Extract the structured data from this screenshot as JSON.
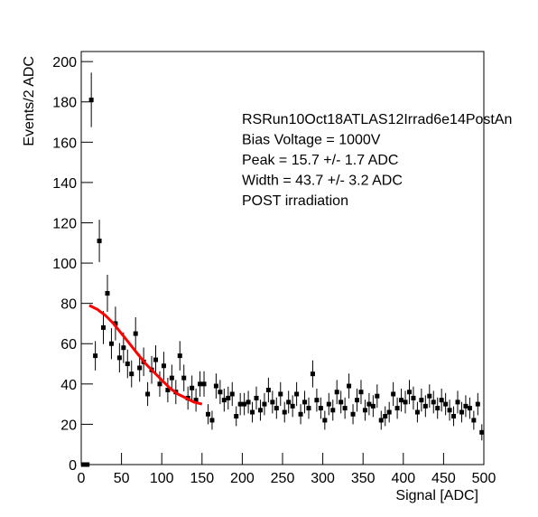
{
  "chart_data": {
    "type": "errorbar",
    "x_label": "Signal [ADC]",
    "y_label": "Events/2 ADC",
    "annotations": [
      "RSRun10Oct18ATLAS12Irrad6e14PostAn",
      "Bias Voltage = 1000V",
      "Peak = 15.7 +/- 1.7 ADC",
      "Width = 43.7 +/- 3.2 ADC",
      "POST irradiation"
    ],
    "xlim": [
      0,
      500
    ],
    "ylim": [
      0,
      205
    ],
    "xticks": [
      0,
      50,
      100,
      150,
      200,
      250,
      300,
      350,
      400,
      450,
      500
    ],
    "yticks": [
      0,
      20,
      40,
      60,
      80,
      100,
      120,
      140,
      160,
      180,
      200
    ],
    "series": [
      {
        "color": "#000000",
        "x": [
          2.5,
          7.5,
          12.5,
          17.5,
          22.5,
          27.5,
          32.5,
          37.5,
          42.5,
          47.5,
          52.5,
          57.5,
          62.5,
          67.5,
          72.5,
          77.5,
          82.5,
          87.5,
          92.5,
          97.5,
          102.5,
          107.5,
          112.5,
          117.5,
          122.5,
          127.5,
          132.5,
          137.5,
          142.5,
          147.5,
          152.5,
          157.5,
          162.5,
          167.5,
          172.5,
          177.5,
          182.5,
          187.5,
          192.5,
          197.5,
          202.5,
          207.5,
          212.5,
          217.5,
          222.5,
          227.5,
          232.5,
          237.5,
          242.5,
          247.5,
          252.5,
          257.5,
          262.5,
          267.5,
          272.5,
          277.5,
          282.5,
          287.5,
          292.5,
          297.5,
          302.5,
          307.5,
          312.5,
          317.5,
          322.5,
          327.5,
          332.5,
          337.5,
          342.5,
          347.5,
          352.5,
          357.5,
          362.5,
          367.5,
          372.5,
          377.5,
          382.5,
          387.5,
          392.5,
          397.5,
          402.5,
          407.5,
          412.5,
          417.5,
          422.5,
          427.5,
          432.5,
          437.5,
          442.5,
          447.5,
          452.5,
          457.5,
          462.5,
          467.5,
          472.5,
          477.5,
          482.5,
          487.5,
          492.5,
          497.5
        ],
        "values": [
          0,
          0,
          181,
          54,
          111,
          68,
          85,
          60,
          70,
          53,
          58,
          50,
          45,
          65,
          48,
          51,
          35,
          47,
          52,
          40,
          49,
          37,
          43,
          36,
          54,
          43,
          33,
          38,
          32,
          40,
          40,
          25,
          22,
          39,
          36,
          32,
          33,
          35,
          24,
          30,
          30,
          31,
          26,
          33,
          27,
          30,
          37,
          31,
          28,
          35,
          26,
          31,
          29,
          35,
          25,
          31,
          28,
          45,
          32,
          28,
          22,
          30,
          27,
          36,
          31,
          28,
          39,
          25,
          32,
          36,
          27,
          30,
          29,
          34,
          22,
          24,
          26,
          35,
          28,
          32,
          31,
          36,
          33,
          26,
          32,
          29,
          34,
          31,
          28,
          32,
          30,
          27,
          24,
          31,
          26,
          29,
          28,
          22,
          30,
          16
        ],
        "errors": [
          0,
          0,
          13.5,
          7.3,
          10.5,
          8.2,
          9.2,
          7.7,
          8.4,
          7.3,
          7.6,
          7.1,
          6.7,
          8.1,
          6.9,
          7.1,
          5.9,
          6.9,
          7.2,
          6.3,
          7,
          6.1,
          6.6,
          6,
          7.3,
          6.6,
          5.7,
          6.2,
          5.7,
          6.3,
          6.3,
          5,
          4.7,
          6.2,
          6,
          5.7,
          5.7,
          5.9,
          4.9,
          5.5,
          5.5,
          5.6,
          5.1,
          5.7,
          5.2,
          5.5,
          6.1,
          5.6,
          5.3,
          5.9,
          5.1,
          5.6,
          5.4,
          5.9,
          5,
          5.6,
          5.3,
          6.7,
          5.7,
          5.3,
          4.7,
          5.5,
          5.2,
          6,
          5.6,
          5.3,
          6.2,
          5,
          5.7,
          6,
          5.2,
          5.5,
          5.4,
          5.8,
          4.7,
          4.9,
          5.1,
          5.9,
          5.3,
          5.7,
          5.6,
          6,
          5.7,
          5.1,
          5.7,
          5.4,
          5.8,
          5.6,
          5.3,
          5.7,
          5.5,
          5.2,
          4.9,
          5.6,
          5.1,
          5.4,
          5.3,
          4.7,
          5.5,
          4
        ]
      }
    ],
    "fit": {
      "color": "#ff0000",
      "x": [
        10,
        20,
        30,
        40,
        50,
        60,
        70,
        80,
        90,
        100,
        110,
        120,
        130,
        140,
        150
      ],
      "values": [
        79,
        77,
        74,
        70,
        65,
        60,
        55,
        50,
        46,
        42,
        38,
        35,
        33,
        31,
        30
      ]
    }
  }
}
